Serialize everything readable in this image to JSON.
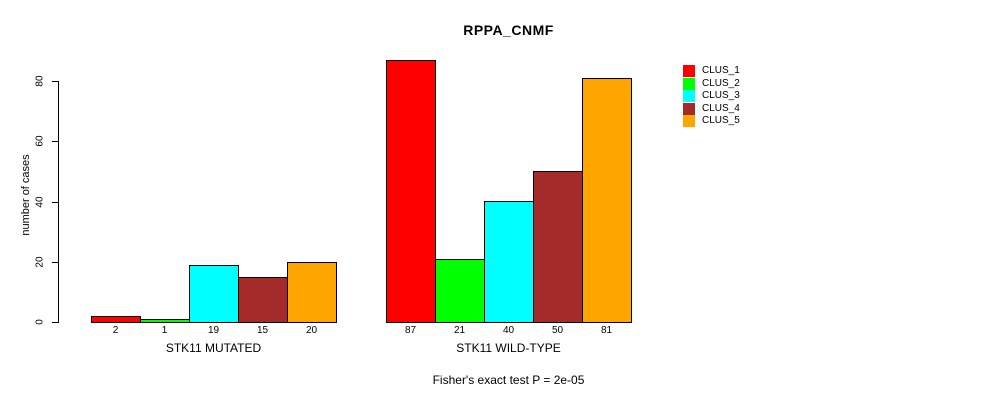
{
  "title": "RPPA_CNMF",
  "chart_data": {
    "type": "bar",
    "title": "RPPA_CNMF",
    "ylabel": "number of cases",
    "ylim": [
      0,
      87
    ],
    "yticks": [
      0,
      20,
      40,
      60,
      80
    ],
    "grid": false,
    "legend_position": "right",
    "categories": [
      "STK11 MUTATED",
      "STK11 WILD-TYPE"
    ],
    "groups": [
      {
        "label": "STK11 MUTATED",
        "values": [
          2,
          1,
          19,
          15,
          20
        ]
      },
      {
        "label": "STK11 WILD-TYPE",
        "values": [
          87,
          21,
          40,
          50,
          81
        ]
      }
    ],
    "series": [
      {
        "name": "CLUS_1",
        "color": "#FF0000"
      },
      {
        "name": "CLUS_2",
        "color": "#00FF00"
      },
      {
        "name": "CLUS_3",
        "color": "#00FFFF"
      },
      {
        "name": "CLUS_4",
        "color": "#A52A2A"
      },
      {
        "name": "CLUS_5",
        "color": "#FFA500"
      }
    ],
    "annotation": "Fisher's exact test P = 2e-05",
    "bars_show_value_labels": true,
    "axis_color": "#000000",
    "background_color": "#FFFFFF"
  }
}
